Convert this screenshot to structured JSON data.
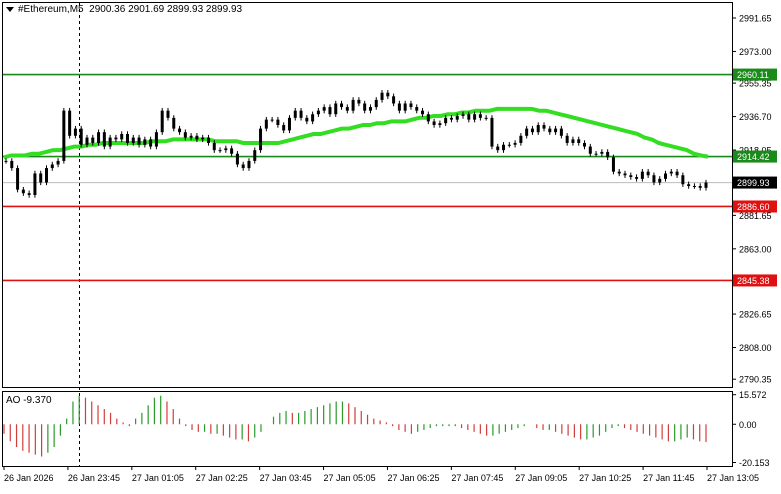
{
  "header": {
    "symbol": "#Ethereum,M5",
    "ohlc": "2900.36 2901.69 2899.93 2899.93"
  },
  "indicator": {
    "label": "AO -9.370"
  },
  "colors": {
    "green_level": "#1a8a1a",
    "red_level": "#e01010",
    "ma": "#33dd22",
    "ao_up": "#2a9a2a",
    "ao_down": "#d23c3c",
    "candles": "#000000"
  },
  "chart_data": {
    "type": "candlestick",
    "ylim": [
      2786,
      3000
    ],
    "price_ticks": [
      "2991.65",
      "2973.00",
      "2955.35",
      "2936.70",
      "2918.05",
      "2899.40",
      "2881.65",
      "2863.00",
      "2844.35",
      "2826.65",
      "2808.00",
      "2790.35"
    ],
    "x_ticks": [
      "26 Jan 2026",
      "26 Jan 23:45",
      "27 Jan 01:05",
      "27 Jan 02:25",
      "27 Jan 03:45",
      "27 Jan 05:05",
      "27 Jan 06:25",
      "27 Jan 07:45",
      "27 Jan 09:05",
      "27 Jan 10:25",
      "27 Jan 11:45",
      "27 Jan 13:05"
    ],
    "levels": [
      {
        "label": "2960.11",
        "value": 2960.11,
        "color": "green"
      },
      {
        "label": "2914.42",
        "value": 2914.42,
        "color": "green"
      },
      {
        "label": "2886.60",
        "value": 2886.6,
        "color": "red"
      },
      {
        "label": "2845.38",
        "value": 2845.38,
        "color": "red"
      }
    ],
    "current_price": {
      "label": "2899.93",
      "value": 2899.93
    },
    "closes": [
      2912,
      2908,
      2896,
      2894,
      2893,
      2905,
      2900,
      2908,
      2910,
      2912,
      2940,
      2926,
      2930,
      2921,
      2925,
      2922,
      2928,
      2920,
      2925,
      2924,
      2927,
      2922,
      2925,
      2921,
      2924,
      2920,
      2928,
      2940,
      2936,
      2930,
      2928,
      2925,
      2926,
      2924,
      2925,
      2922,
      2918,
      2918,
      2919,
      2916,
      2910,
      2908,
      2912,
      2918,
      2930,
      2935,
      2935,
      2932,
      2929,
      2936,
      2940,
      2936,
      2934,
      2938,
      2940,
      2942,
      2938,
      2944,
      2942,
      2940,
      2946,
      2944,
      2940,
      2942,
      2946,
      2950,
      2948,
      2944,
      2940,
      2944,
      2942,
      2940,
      2938,
      2934,
      2932,
      2933,
      2936,
      2935,
      2937,
      2938,
      2935,
      2938,
      2936,
      2936,
      2920,
      2918,
      2921,
      2921,
      2922,
      2926,
      2930,
      2928,
      2932,
      2930,
      2928,
      2930,
      2926,
      2922,
      2924,
      2922,
      2920,
      2916,
      2916,
      2917,
      2914,
      2906,
      2905,
      2904,
      2903,
      2902,
      2906,
      2904,
      2900,
      2902,
      2905,
      2906,
      2904,
      2899,
      2898,
      2898,
      2897,
      2899.93
    ],
    "ma": [
      2914,
      2915,
      2915,
      2915,
      2916,
      2916,
      2917,
      2918,
      2918,
      2919,
      2920,
      2920,
      2921,
      2921,
      2922,
      2922,
      2922,
      2922,
      2922,
      2922,
      2922,
      2923,
      2923,
      2923,
      2924,
      2924,
      2924,
      2924,
      2924,
      2924,
      2923,
      2923,
      2923,
      2923,
      2922,
      2922,
      2922,
      2922,
      2922,
      2922,
      2923,
      2924,
      2925,
      2926,
      2927,
      2927,
      2928,
      2929,
      2930,
      2930,
      2931,
      2932,
      2932,
      2933,
      2933,
      2934,
      2934,
      2934,
      2935,
      2936,
      2936,
      2937,
      2937,
      2938,
      2938,
      2939,
      2939,
      2940,
      2940,
      2940,
      2941,
      2941,
      2941,
      2941,
      2941,
      2941,
      2940,
      2940,
      2939,
      2938,
      2937,
      2936,
      2935,
      2934,
      2933,
      2932,
      2931,
      2930,
      2929,
      2928,
      2927,
      2925,
      2924,
      2922,
      2921,
      2920,
      2919,
      2918,
      2916,
      2915,
      2914.42
    ],
    "ao": [
      -5,
      -9,
      -12,
      -14,
      -15,
      -16,
      -17,
      -15,
      -12,
      -6,
      3,
      12,
      15,
      14,
      12,
      10,
      8,
      6,
      3,
      1,
      -1,
      3,
      6,
      10,
      14,
      15,
      12,
      8,
      3,
      -1,
      -3,
      -4,
      -4,
      -5,
      -5,
      -6,
      -7,
      -8,
      -8,
      -9,
      -7,
      -4,
      0,
      4,
      6,
      7,
      6,
      6,
      7,
      8,
      9,
      10,
      11,
      12,
      12,
      11,
      9,
      7,
      5,
      3,
      2,
      1,
      -1,
      -3,
      -4,
      -5,
      -4,
      -3,
      -2,
      -1,
      -1,
      -1,
      -1,
      -2,
      -3,
      -4,
      -5,
      -6,
      -6,
      -5,
      -4,
      -3,
      -2,
      -1,
      0,
      -2,
      -3,
      -3,
      -4,
      -5,
      -6,
      -7,
      -8,
      -8,
      -7,
      -6,
      -4,
      -2,
      -1,
      -2,
      -3,
      -4,
      -5,
      -6,
      -7,
      -8,
      -9,
      -9,
      -8,
      -7,
      -8,
      -9,
      -9.37
    ],
    "ao_ticks": [
      "15.572",
      "0.00",
      "-20.153"
    ],
    "ao_ylim": [
      -22,
      17
    ]
  }
}
